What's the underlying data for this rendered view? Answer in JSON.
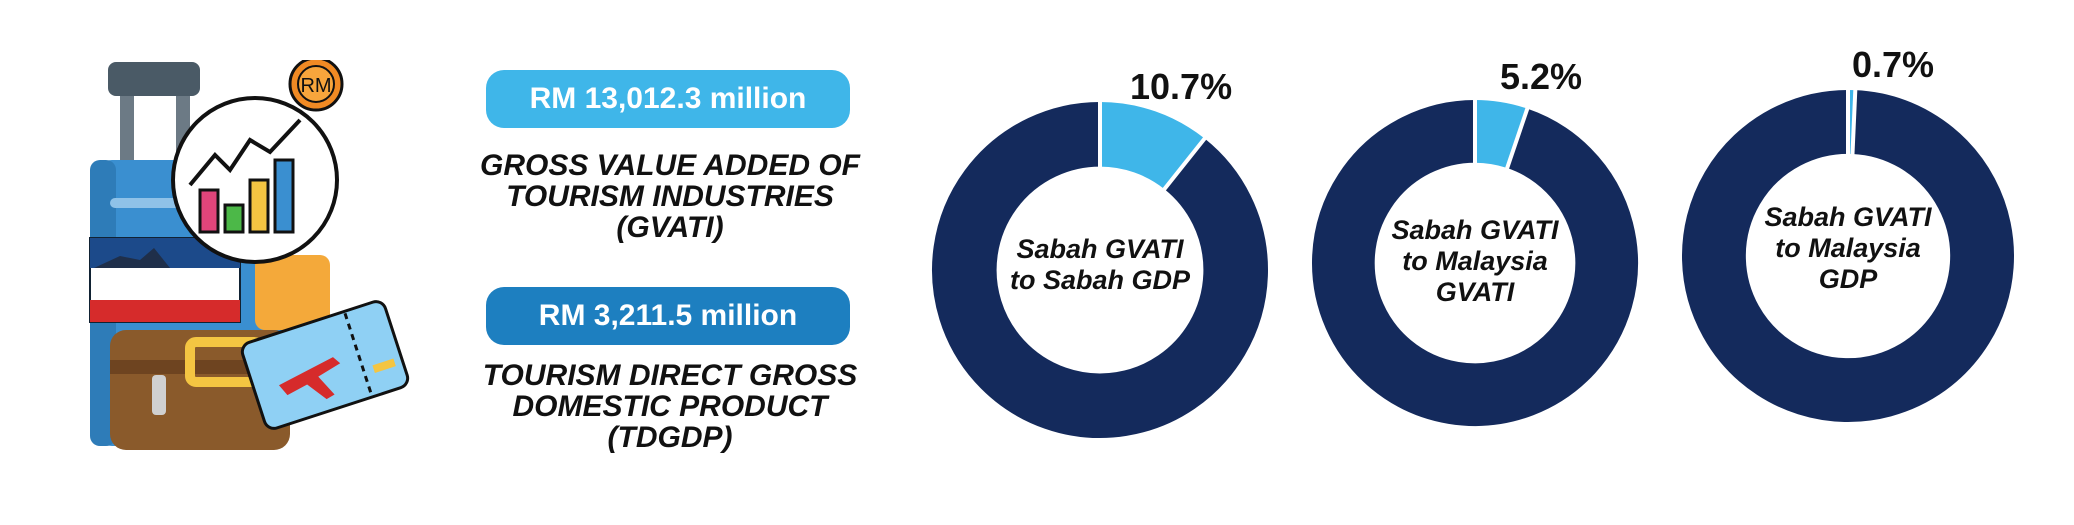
{
  "gvati": {
    "amount": "RM 13,012.3 million",
    "desc_lines": [
      "GROSS VALUE ADDED OF",
      "TOURISM INDUSTRIES",
      "(GVATI)"
    ]
  },
  "tdgdp": {
    "amount": "RM 3,211.5 million",
    "desc_lines": [
      "TOURISM DIRECT GROSS",
      "DOMESTIC PRODUCT",
      "(TDGDP)"
    ]
  },
  "colors": {
    "share": "#3fb6e9",
    "remainder": "#142a5c",
    "pill_light": "#3fb6e9",
    "pill_dark": "#1d7fc0"
  },
  "icons": {
    "illustration": "luggage-with-flag-chart-coin-ticket-icon"
  },
  "chart_data": [
    {
      "type": "pie",
      "variant": "donut",
      "label_lines": [
        "Sabah GVATI",
        "to Sabah GDP"
      ],
      "value_label": "10.7%",
      "values": [
        10.7,
        89.3
      ]
    },
    {
      "type": "pie",
      "variant": "donut",
      "label_lines": [
        "Sabah GVATI",
        "to Malaysia",
        "GVATI"
      ],
      "value_label": "5.2%",
      "values": [
        5.2,
        94.8
      ]
    },
    {
      "type": "pie",
      "variant": "donut",
      "label_lines": [
        "Sabah GVATI",
        "to Malaysia",
        "GDP"
      ],
      "value_label": "0.7%",
      "values": [
        0.7,
        99.3
      ]
    }
  ]
}
